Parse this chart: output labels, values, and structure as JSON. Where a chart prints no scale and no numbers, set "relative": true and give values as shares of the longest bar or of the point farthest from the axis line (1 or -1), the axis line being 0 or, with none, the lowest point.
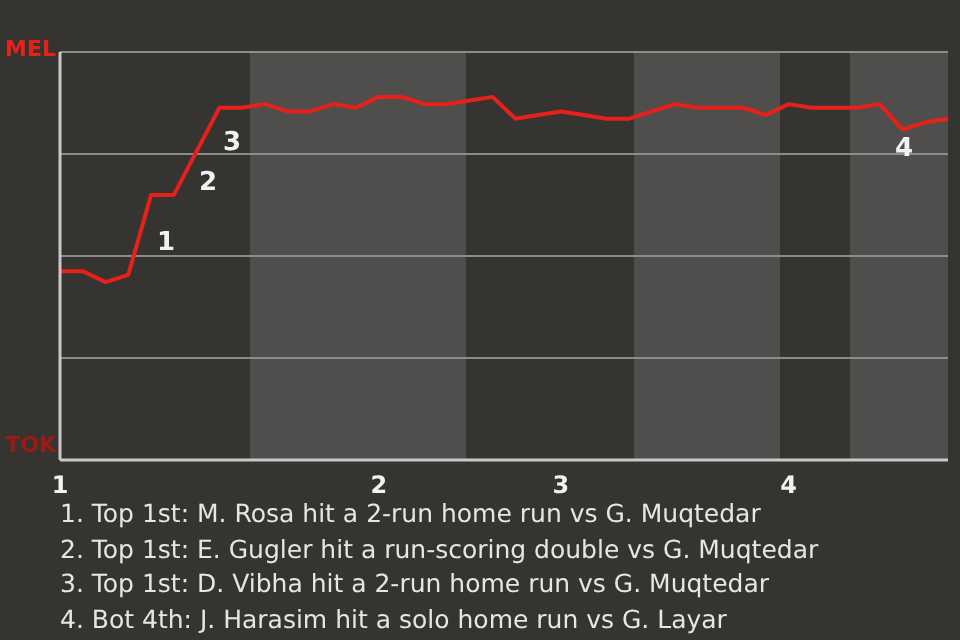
{
  "chart_data": {
    "type": "line",
    "relative": true,
    "categories": [
      "1",
      null,
      null,
      null,
      null,
      null,
      null,
      null,
      null,
      null,
      null,
      null,
      null,
      null,
      "2",
      null,
      null,
      null,
      null,
      null,
      null,
      null,
      "3",
      null,
      null,
      null,
      null,
      null,
      null,
      null,
      null,
      null,
      "4",
      null,
      null,
      null,
      null,
      null,
      null,
      null
    ],
    "series": [
      {
        "color": "#e8201a",
        "values": [
          0.52,
          0.52,
          0.49,
          0.51,
          0.73,
          0.73,
          0.85,
          0.97,
          0.97,
          0.98,
          0.96,
          0.96,
          0.98,
          0.97,
          1,
          1,
          0.98,
          0.98,
          0.99,
          1,
          0.94,
          0.95,
          0.96,
          0.95,
          0.94,
          0.94,
          0.96,
          0.98,
          0.97,
          0.97,
          0.97,
          0.95,
          0.98,
          0.97,
          0.97,
          0.97,
          0.98,
          0.91,
          0.93,
          0.94
        ]
      }
    ],
    "grid": "y",
    "annotations": [
      "MEL",
      "TOK",
      "1",
      "2",
      "3",
      "4",
      "1. Top 1st: M. Rosa hit a 2-run home run vs G. Muqtedar",
      "2. Top 1st: E. Gugler hit a run-scoring double vs G. Muqtedar",
      "3. Top 1st: D. Vibha hit a 2-run home run vs G. Muqtedar",
      "4. Bot 4th: J. Harasim hit a solo home run vs G. Layar"
    ]
  }
}
